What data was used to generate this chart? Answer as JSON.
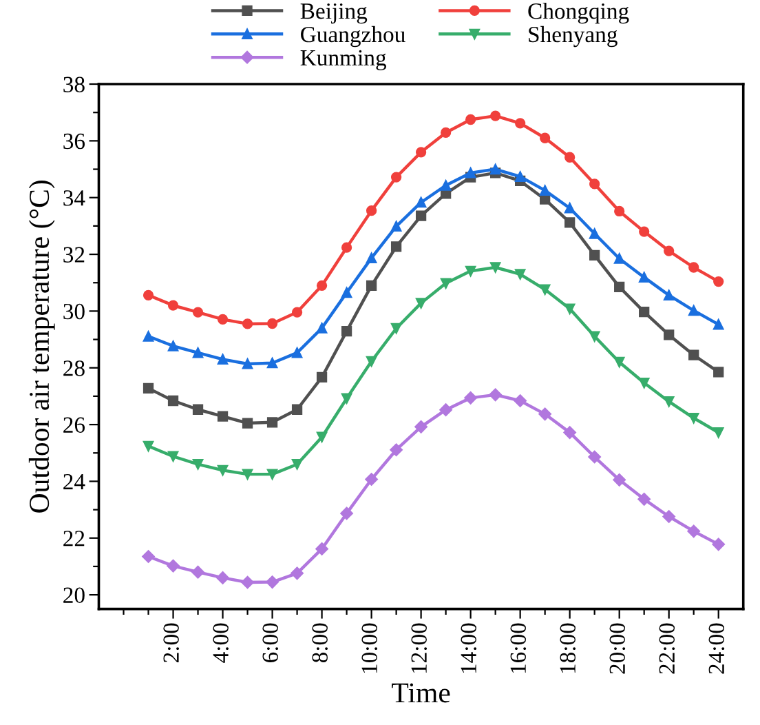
{
  "chart_data": {
    "type": "line",
    "xlabel": "Time",
    "ylabel": "Outdoor air temperature (°C)",
    "x": [
      1,
      2,
      3,
      4,
      5,
      6,
      7,
      8,
      9,
      10,
      11,
      12,
      13,
      14,
      15,
      16,
      17,
      18,
      19,
      20,
      21,
      22,
      23,
      24
    ],
    "series": [
      {
        "name": "Beijing",
        "color": "#505050",
        "marker": "square",
        "values": [
          27.28,
          26.84,
          26.53,
          26.29,
          26.05,
          26.08,
          26.53,
          27.67,
          29.29,
          30.9,
          32.27,
          33.36,
          34.14,
          34.72,
          34.87,
          34.59,
          33.94,
          33.12,
          31.97,
          30.85,
          29.97,
          29.16,
          28.45,
          27.85
        ]
      },
      {
        "name": "Chongqing",
        "color": "#f0403c",
        "marker": "circle",
        "values": [
          30.56,
          30.2,
          29.96,
          29.71,
          29.55,
          29.56,
          29.96,
          30.9,
          32.24,
          33.54,
          34.72,
          35.6,
          36.29,
          36.75,
          36.88,
          36.62,
          36.1,
          35.42,
          34.48,
          33.52,
          32.8,
          32.12,
          31.54,
          31.04
        ]
      },
      {
        "name": "Guangzhou",
        "color": "#1a6fdf",
        "marker": "triangle",
        "values": [
          29.11,
          28.77,
          28.53,
          28.3,
          28.14,
          28.17,
          28.53,
          29.4,
          30.65,
          31.87,
          32.99,
          33.83,
          34.43,
          34.87,
          35.0,
          34.74,
          34.25,
          33.63,
          32.73,
          31.85,
          31.19,
          30.56,
          30.02,
          29.53
        ]
      },
      {
        "name": "Shenyang",
        "color": "#37ad6b",
        "marker": "triangle_down",
        "values": [
          25.24,
          24.88,
          24.6,
          24.39,
          24.25,
          24.25,
          24.6,
          25.56,
          26.92,
          28.23,
          29.39,
          30.28,
          30.98,
          31.41,
          31.54,
          31.3,
          30.76,
          30.08,
          29.11,
          28.2,
          27.47,
          26.81,
          26.23,
          25.72
        ]
      },
      {
        "name": "Kunming",
        "color": "#b177de",
        "marker": "diamond",
        "values": [
          21.35,
          21.02,
          20.8,
          20.6,
          20.44,
          20.45,
          20.76,
          21.62,
          22.87,
          24.07,
          25.11,
          25.92,
          26.52,
          26.94,
          27.05,
          26.84,
          26.37,
          25.72,
          24.86,
          24.05,
          23.37,
          22.76,
          22.24,
          21.78
        ]
      }
    ],
    "xlim": [
      -1,
      25
    ],
    "xticks": [
      {
        "value": 0,
        "label": null
      },
      {
        "value": 1,
        "label": null
      },
      {
        "value": 2,
        "label": "2:00"
      },
      {
        "value": 3,
        "label": null
      },
      {
        "value": 4,
        "label": "4:00"
      },
      {
        "value": 5,
        "label": null
      },
      {
        "value": 6,
        "label": "6:00"
      },
      {
        "value": 7,
        "label": null
      },
      {
        "value": 8,
        "label": "8:00"
      },
      {
        "value": 9,
        "label": null
      },
      {
        "value": 10,
        "label": "10:00"
      },
      {
        "value": 11,
        "label": null
      },
      {
        "value": 12,
        "label": "12:00"
      },
      {
        "value": 13,
        "label": null
      },
      {
        "value": 14,
        "label": "14:00"
      },
      {
        "value": 15,
        "label": null
      },
      {
        "value": 16,
        "label": "16:00"
      },
      {
        "value": 17,
        "label": null
      },
      {
        "value": 18,
        "label": "18:00"
      },
      {
        "value": 19,
        "label": null
      },
      {
        "value": 20,
        "label": "20:00"
      },
      {
        "value": 21,
        "label": null
      },
      {
        "value": 22,
        "label": "22:00"
      },
      {
        "value": 23,
        "label": null
      },
      {
        "value": 24,
        "label": "24:00"
      }
    ],
    "ylim": [
      19.5,
      38
    ],
    "yticks": [
      20,
      {
        "value": 21,
        "label": null
      },
      22,
      {
        "value": 23,
        "label": null
      },
      24,
      {
        "value": 25,
        "label": null
      },
      26,
      {
        "value": 27,
        "label": null
      },
      28,
      {
        "value": 29,
        "label": null
      },
      30,
      {
        "value": 31,
        "label": null
      },
      32,
      {
        "value": 33,
        "label": null
      },
      34,
      {
        "value": 35,
        "label": null
      },
      36,
      {
        "value": 37,
        "label": null
      },
      38
    ],
    "grid": false,
    "legend": "top",
    "line_style": "solid"
  }
}
